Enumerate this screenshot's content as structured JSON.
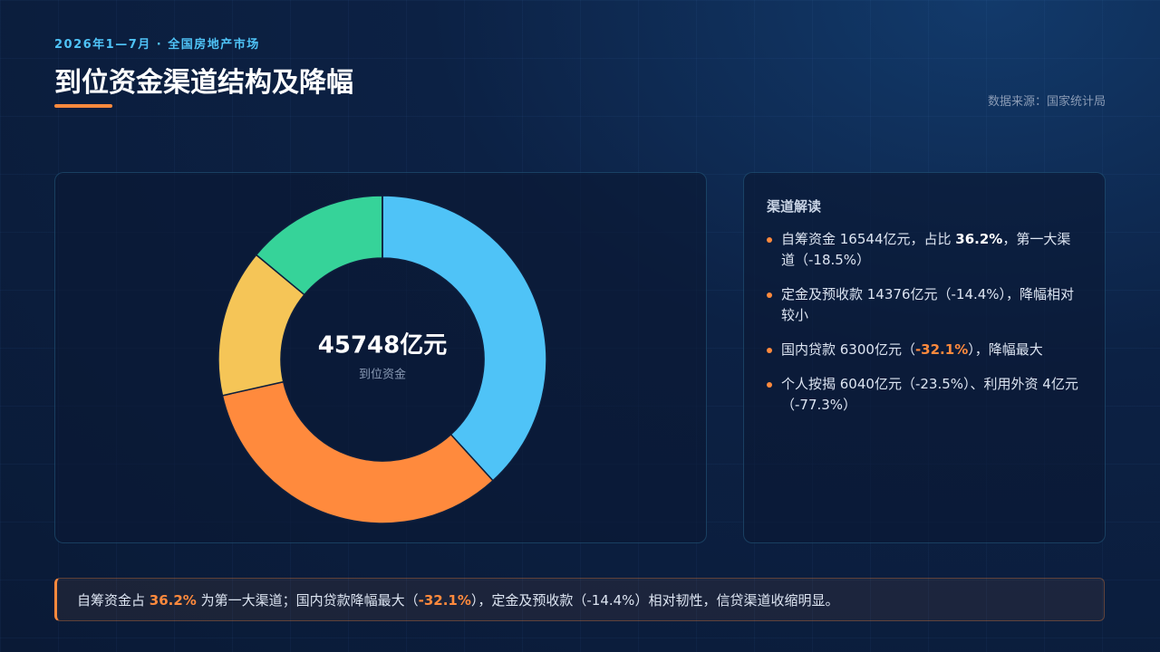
{
  "header": {
    "kicker": "2026年1—7月 · 全国房地产市场",
    "title": "到位资金渠道结构及降幅",
    "source": "数据来源：国家统计局"
  },
  "chart_data": {
    "type": "pie",
    "donut": true,
    "center_value": "45748亿元",
    "center_label": "到位资金",
    "values": [
      16544,
      14376,
      6300,
      6040,
      4
    ],
    "colors": [
      "#4fc3f7",
      "#ff8a3d",
      "#f5c557",
      "#36d399",
      "#a78bfa"
    ]
  },
  "panel": {
    "title": "渠道解读",
    "items": [
      [
        "自筹资金 16544亿元，占比 ",
        {
          "text": "36.2%",
          "em": "strong"
        },
        "，第一大渠道（-18.5%）"
      ],
      [
        "定金及预收款 14376亿元（-14.4%），降幅相对较小"
      ],
      [
        "国内贷款 6300亿元（",
        {
          "text": "-32.1%",
          "em": "accent"
        },
        "），降幅最大"
      ],
      [
        "个人按揭 6040亿元（-23.5%）、利用外资 4亿元（-77.3%）"
      ]
    ]
  },
  "footer": [
    "自筹资金占 ",
    {
      "text": "36.2%",
      "em": "accent"
    },
    " 为第一大渠道；国内贷款降幅最大（",
    {
      "text": "-32.1%",
      "em": "accent"
    },
    "），定金及预收款（-14.4%）相对韧性，信贷渠道收缩明显。"
  ]
}
